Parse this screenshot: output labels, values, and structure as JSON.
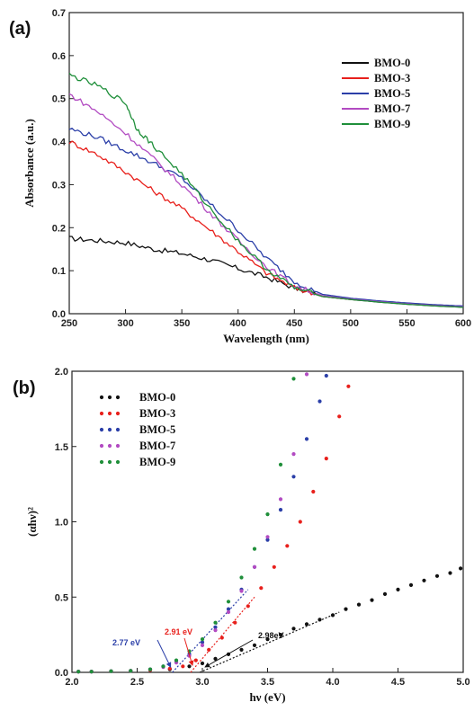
{
  "chart_data": [
    {
      "panel_label": "(a)",
      "type": "line",
      "xlabel": "Wavelength (nm)",
      "ylabel": "Absorbance (a.u.)",
      "xlim": [
        250,
        600
      ],
      "ylim": [
        0.0,
        0.7
      ],
      "xticks": [
        "250",
        "300",
        "350",
        "400",
        "450",
        "500",
        "550",
        "600"
      ],
      "yticks": [
        "0.0",
        "0.1",
        "0.2",
        "0.3",
        "0.4",
        "0.5",
        "0.6",
        "0.7"
      ],
      "legend_position": "top-right",
      "series": [
        {
          "name": "BMO-0",
          "color": "#111111",
          "x": [
            250,
            275,
            300,
            325,
            350,
            375,
            400,
            425,
            450,
            475,
            500,
            525,
            550,
            575,
            600
          ],
          "y": [
            0.175,
            0.17,
            0.165,
            0.15,
            0.14,
            0.125,
            0.105,
            0.085,
            0.06,
            0.04,
            0.033,
            0.027,
            0.022,
            0.018,
            0.015
          ]
        },
        {
          "name": "BMO-3",
          "color": "#e8201c",
          "x": [
            250,
            275,
            300,
            325,
            350,
            375,
            400,
            425,
            450,
            475,
            500,
            525,
            550,
            575,
            600
          ],
          "y": [
            0.4,
            0.37,
            0.33,
            0.285,
            0.245,
            0.195,
            0.145,
            0.095,
            0.06,
            0.04,
            0.033,
            0.028,
            0.023,
            0.019,
            0.016
          ]
        },
        {
          "name": "BMO-5",
          "color": "#2b3fa8",
          "x": [
            250,
            275,
            300,
            325,
            350,
            375,
            400,
            425,
            450,
            475,
            500,
            525,
            550,
            575,
            600
          ],
          "y": [
            0.43,
            0.41,
            0.38,
            0.35,
            0.315,
            0.255,
            0.195,
            0.13,
            0.075,
            0.045,
            0.036,
            0.03,
            0.025,
            0.021,
            0.018
          ]
        },
        {
          "name": "BMO-7",
          "color": "#b24bc2",
          "x": [
            250,
            275,
            300,
            325,
            350,
            375,
            400,
            425,
            450,
            475,
            500,
            525,
            550,
            575,
            600
          ],
          "y": [
            0.51,
            0.47,
            0.42,
            0.36,
            0.3,
            0.235,
            0.17,
            0.11,
            0.065,
            0.042,
            0.034,
            0.028,
            0.023,
            0.019,
            0.016
          ]
        },
        {
          "name": "BMO-9",
          "color": "#1f8f3a",
          "x": [
            250,
            275,
            300,
            310,
            325,
            350,
            375,
            400,
            425,
            450,
            475,
            500,
            525,
            550,
            575,
            600
          ],
          "y": [
            0.555,
            0.53,
            0.49,
            0.43,
            0.39,
            0.325,
            0.245,
            0.17,
            0.105,
            0.06,
            0.04,
            0.033,
            0.027,
            0.022,
            0.018,
            0.015
          ]
        }
      ]
    },
    {
      "panel_label": "(b)",
      "type": "scatter",
      "xlabel": "hν (eV)",
      "ylabel": "(αhν)²",
      "xlim": [
        2.0,
        5.0
      ],
      "ylim": [
        0.0,
        2.0
      ],
      "xticks": [
        "2.0",
        "2.5",
        "3.0",
        "3.5",
        "4.0",
        "4.5",
        "5.0"
      ],
      "yticks": [
        "0.0",
        "0.5",
        "1.0",
        "1.5",
        "2.0"
      ],
      "legend_position": "top-left",
      "series": [
        {
          "name": "BMO-0",
          "color": "#111111",
          "x": [
            2.05,
            2.15,
            2.3,
            2.45,
            2.6,
            2.75,
            2.9,
            3.0,
            3.1,
            3.2,
            3.3,
            3.4,
            3.5,
            3.6,
            3.7,
            3.8,
            3.9,
            4.0,
            4.1,
            4.2,
            4.3,
            4.4,
            4.5,
            4.6,
            4.7,
            4.8,
            4.9,
            4.98
          ],
          "y": [
            0.005,
            0.005,
            0.008,
            0.01,
            0.015,
            0.02,
            0.04,
            0.06,
            0.09,
            0.12,
            0.15,
            0.18,
            0.22,
            0.25,
            0.29,
            0.32,
            0.35,
            0.38,
            0.42,
            0.45,
            0.48,
            0.52,
            0.55,
            0.58,
            0.61,
            0.64,
            0.66,
            0.69
          ]
        },
        {
          "name": "BMO-3",
          "color": "#e8201c",
          "x": [
            2.05,
            2.15,
            2.3,
            2.45,
            2.6,
            2.75,
            2.85,
            2.95,
            3.05,
            3.15,
            3.25,
            3.35,
            3.45,
            3.55,
            3.65,
            3.75,
            3.85,
            3.95,
            4.05,
            4.12
          ],
          "y": [
            0.005,
            0.005,
            0.008,
            0.01,
            0.015,
            0.025,
            0.04,
            0.08,
            0.15,
            0.23,
            0.33,
            0.44,
            0.56,
            0.7,
            0.84,
            1.0,
            1.2,
            1.42,
            1.7,
            1.9
          ]
        },
        {
          "name": "BMO-5",
          "color": "#2b3fa8",
          "x": [
            2.05,
            2.15,
            2.3,
            2.45,
            2.6,
            2.7,
            2.8,
            2.9,
            3.0,
            3.1,
            3.2,
            3.3,
            3.4,
            3.5,
            3.6,
            3.7,
            3.8,
            3.9,
            3.95
          ],
          "y": [
            0.005,
            0.005,
            0.008,
            0.01,
            0.02,
            0.04,
            0.07,
            0.12,
            0.2,
            0.3,
            0.42,
            0.55,
            0.7,
            0.88,
            1.08,
            1.3,
            1.55,
            1.8,
            1.97
          ]
        },
        {
          "name": "BMO-7",
          "color": "#b24bc2",
          "x": [
            2.05,
            2.15,
            2.3,
            2.45,
            2.6,
            2.7,
            2.8,
            2.9,
            3.0,
            3.1,
            3.2,
            3.3,
            3.4,
            3.5,
            3.6,
            3.7,
            3.8
          ],
          "y": [
            0.005,
            0.005,
            0.008,
            0.01,
            0.02,
            0.035,
            0.065,
            0.11,
            0.18,
            0.28,
            0.4,
            0.54,
            0.7,
            0.9,
            1.15,
            1.45,
            1.98
          ]
        },
        {
          "name": "BMO-9",
          "color": "#1f8f3a",
          "x": [
            2.05,
            2.15,
            2.3,
            2.45,
            2.6,
            2.7,
            2.8,
            2.9,
            3.0,
            3.1,
            3.2,
            3.3,
            3.4,
            3.5,
            3.6,
            3.7
          ],
          "y": [
            0.005,
            0.005,
            0.008,
            0.01,
            0.02,
            0.04,
            0.08,
            0.14,
            0.22,
            0.33,
            0.47,
            0.63,
            0.82,
            1.05,
            1.38,
            1.95
          ]
        }
      ],
      "annotations": [
        {
          "text": "2.77 eV",
          "color": "#2b3fa8",
          "x": 2.77
        },
        {
          "text": "2.91 eV",
          "color": "#e8201c",
          "x": 2.91
        },
        {
          "text": "2.98eV",
          "color": "#111111",
          "x": 2.98
        }
      ]
    }
  ]
}
